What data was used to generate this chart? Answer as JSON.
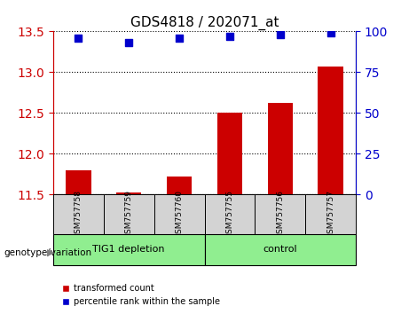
{
  "title": "GDS4818 / 202071_at",
  "samples": [
    "GSM757758",
    "GSM757759",
    "GSM757760",
    "GSM757755",
    "GSM757756",
    "GSM757757"
  ],
  "groups": [
    "TIG1 depletion",
    "TIG1 depletion",
    "TIG1 depletion",
    "control",
    "control",
    "control"
  ],
  "bar_values": [
    11.8,
    11.53,
    11.72,
    12.5,
    12.62,
    13.07
  ],
  "dot_values": [
    96,
    93,
    96,
    97,
    98,
    99
  ],
  "ylim_left": [
    11.5,
    13.5
  ],
  "ylim_right": [
    0,
    100
  ],
  "yticks_left": [
    11.5,
    12.0,
    12.5,
    13.0,
    13.5
  ],
  "yticks_right": [
    0,
    25,
    50,
    75,
    100
  ],
  "bar_color": "#cc0000",
  "dot_color": "#0000cc",
  "bar_bottom": 11.5,
  "group_colors": {
    "TIG1 depletion": "#90ee90",
    "control": "#90ee90"
  },
  "group_bg": "#90ee90",
  "sample_bg": "#d3d3d3",
  "grid_color": "#000000",
  "left_tick_color": "#cc0000",
  "right_tick_color": "#0000cc",
  "legend_bar_label": "transformed count",
  "legend_dot_label": "percentile rank within the sample",
  "genotype_label": "genotype/variation"
}
